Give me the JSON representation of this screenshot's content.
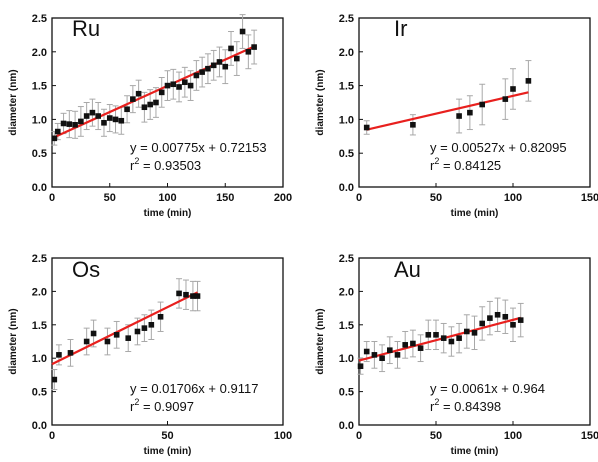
{
  "chart_data": [
    {
      "type": "scatter",
      "title": "Ru",
      "xlabel": "time (min)",
      "ylabel": "diameter (nm)",
      "xlim": [
        0,
        200
      ],
      "ylim": [
        0,
        2.5
      ],
      "xticks": [
        "0",
        "50",
        "100",
        "150",
        "200"
      ],
      "yticks": [
        "0.0",
        "0.5",
        "1.0",
        "1.5",
        "2.0",
        "2.5"
      ],
      "equation": "y = 0.00775x + 0.72153",
      "r2_prefix": "r",
      "r2_exp": "2",
      "r2_value": " = 0.93503",
      "fit": {
        "slope": 0.00775,
        "intercept": 0.72153,
        "x_range": [
          0,
          175
        ],
        "color": "#e8201e"
      },
      "points": [
        {
          "x": 2,
          "y": 0.72,
          "err": 0.1
        },
        {
          "x": 5,
          "y": 0.82,
          "err": 0.12
        },
        {
          "x": 10,
          "y": 0.94,
          "err": 0.15
        },
        {
          "x": 15,
          "y": 0.93,
          "err": 0.2
        },
        {
          "x": 20,
          "y": 0.92,
          "err": 0.2
        },
        {
          "x": 25,
          "y": 0.97,
          "err": 0.22
        },
        {
          "x": 30,
          "y": 1.05,
          "err": 0.2
        },
        {
          "x": 35,
          "y": 1.1,
          "err": 0.2
        },
        {
          "x": 40,
          "y": 1.05,
          "err": 0.2
        },
        {
          "x": 45,
          "y": 0.95,
          "err": 0.2
        },
        {
          "x": 50,
          "y": 1.02,
          "err": 0.2
        },
        {
          "x": 55,
          "y": 1.0,
          "err": 0.2
        },
        {
          "x": 60,
          "y": 0.98,
          "err": 0.2
        },
        {
          "x": 65,
          "y": 1.15,
          "err": 0.2
        },
        {
          "x": 70,
          "y": 1.3,
          "err": 0.2
        },
        {
          "x": 75,
          "y": 1.38,
          "err": 0.2
        },
        {
          "x": 80,
          "y": 1.18,
          "err": 0.22
        },
        {
          "x": 85,
          "y": 1.22,
          "err": 0.22
        },
        {
          "x": 90,
          "y": 1.25,
          "err": 0.22
        },
        {
          "x": 95,
          "y": 1.4,
          "err": 0.22
        },
        {
          "x": 100,
          "y": 1.5,
          "err": 0.22
        },
        {
          "x": 105,
          "y": 1.52,
          "err": 0.22
        },
        {
          "x": 110,
          "y": 1.48,
          "err": 0.22
        },
        {
          "x": 115,
          "y": 1.55,
          "err": 0.22
        },
        {
          "x": 120,
          "y": 1.5,
          "err": 0.22
        },
        {
          "x": 125,
          "y": 1.65,
          "err": 0.22
        },
        {
          "x": 130,
          "y": 1.7,
          "err": 0.22
        },
        {
          "x": 135,
          "y": 1.75,
          "err": 0.22
        },
        {
          "x": 140,
          "y": 1.8,
          "err": 0.22
        },
        {
          "x": 145,
          "y": 1.85,
          "err": 0.22
        },
        {
          "x": 150,
          "y": 1.78,
          "err": 0.25
        },
        {
          "x": 155,
          "y": 2.05,
          "err": 0.25
        },
        {
          "x": 160,
          "y": 1.9,
          "err": 0.25
        },
        {
          "x": 165,
          "y": 2.3,
          "err": 0.25
        },
        {
          "x": 170,
          "y": 2.0,
          "err": 0.25
        },
        {
          "x": 175,
          "y": 2.07,
          "err": 0.25
        }
      ]
    },
    {
      "type": "scatter",
      "title": "Ir",
      "xlabel": "time (min)",
      "ylabel": "diameter (nm)",
      "xlim": [
        0,
        150
      ],
      "ylim": [
        0,
        2.5
      ],
      "xticks": [
        "0",
        "50",
        "100",
        "150"
      ],
      "yticks": [
        "0.0",
        "0.5",
        "1.0",
        "1.5",
        "2.0",
        "2.5"
      ],
      "equation": "y = 0.00527x + 0.82095",
      "r2_prefix": "r",
      "r2_exp": "2",
      "r2_value": " = 0.84125",
      "fit": {
        "slope": 0.00527,
        "intercept": 0.82095,
        "x_range": [
          5,
          110
        ],
        "color": "#e8201e"
      },
      "points": [
        {
          "x": 5,
          "y": 0.88,
          "err": 0.1
        },
        {
          "x": 35,
          "y": 0.92,
          "err": 0.15
        },
        {
          "x": 65,
          "y": 1.05,
          "err": 0.25
        },
        {
          "x": 72,
          "y": 1.1,
          "err": 0.25
        },
        {
          "x": 80,
          "y": 1.22,
          "err": 0.3
        },
        {
          "x": 95,
          "y": 1.3,
          "err": 0.3
        },
        {
          "x": 100,
          "y": 1.45,
          "err": 0.3
        },
        {
          "x": 110,
          "y": 1.57,
          "err": 0.3
        }
      ]
    },
    {
      "type": "scatter",
      "title": "Os",
      "xlabel": "time (min)",
      "ylabel": "diameter (nm)",
      "xlim": [
        0,
        100
      ],
      "ylim": [
        0,
        2.5
      ],
      "xticks": [
        "0",
        "50",
        "100"
      ],
      "yticks": [
        "0.0",
        "0.5",
        "1.0",
        "1.5",
        "2.0",
        "2.5"
      ],
      "equation": "y = 0.01706x + 0.9117",
      "r2_prefix": "r",
      "r2_exp": "2",
      "r2_value": " = 0.9097",
      "fit": {
        "slope": 0.01706,
        "intercept": 0.9117,
        "x_range": [
          0,
          63
        ],
        "color": "#e8201e"
      },
      "points": [
        {
          "x": 1,
          "y": 0.68,
          "err": 0.15
        },
        {
          "x": 3,
          "y": 1.05,
          "err": 0.15
        },
        {
          "x": 8,
          "y": 1.08,
          "err": 0.2
        },
        {
          "x": 15,
          "y": 1.25,
          "err": 0.2
        },
        {
          "x": 18,
          "y": 1.37,
          "err": 0.2
        },
        {
          "x": 24,
          "y": 1.25,
          "err": 0.2
        },
        {
          "x": 28,
          "y": 1.35,
          "err": 0.2
        },
        {
          "x": 33,
          "y": 1.3,
          "err": 0.2
        },
        {
          "x": 37,
          "y": 1.4,
          "err": 0.2
        },
        {
          "x": 40,
          "y": 1.45,
          "err": 0.2
        },
        {
          "x": 43,
          "y": 1.5,
          "err": 0.22
        },
        {
          "x": 47,
          "y": 1.62,
          "err": 0.22
        },
        {
          "x": 55,
          "y": 1.97,
          "err": 0.22
        },
        {
          "x": 58,
          "y": 1.95,
          "err": 0.22
        },
        {
          "x": 61,
          "y": 1.93,
          "err": 0.22
        },
        {
          "x": 63,
          "y": 1.93,
          "err": 0.22
        }
      ]
    },
    {
      "type": "scatter",
      "title": "Au",
      "xlabel": "time (min)",
      "ylabel": "diameter (nm)",
      "xlim": [
        0,
        150
      ],
      "ylim": [
        0,
        2.5
      ],
      "xticks": [
        "0",
        "50",
        "100",
        "150"
      ],
      "yticks": [
        "0.0",
        "0.5",
        "1.0",
        "1.5",
        "2.0",
        "2.5"
      ],
      "equation": "y = 0.0061x + 0.964",
      "r2_prefix": "r",
      "r2_exp": "2",
      "r2_value": " = 0.84398",
      "fit": {
        "slope": 0.0061,
        "intercept": 0.964,
        "x_range": [
          0,
          105
        ],
        "color": "#e8201e"
      },
      "points": [
        {
          "x": 1,
          "y": 0.88,
          "err": 0.12
        },
        {
          "x": 5,
          "y": 1.1,
          "err": 0.15
        },
        {
          "x": 10,
          "y": 1.05,
          "err": 0.2
        },
        {
          "x": 15,
          "y": 1.0,
          "err": 0.2
        },
        {
          "x": 20,
          "y": 1.12,
          "err": 0.2
        },
        {
          "x": 25,
          "y": 1.05,
          "err": 0.2
        },
        {
          "x": 30,
          "y": 1.2,
          "err": 0.2
        },
        {
          "x": 35,
          "y": 1.22,
          "err": 0.2
        },
        {
          "x": 40,
          "y": 1.15,
          "err": 0.2
        },
        {
          "x": 45,
          "y": 1.35,
          "err": 0.22
        },
        {
          "x": 50,
          "y": 1.35,
          "err": 0.22
        },
        {
          "x": 55,
          "y": 1.3,
          "err": 0.22
        },
        {
          "x": 60,
          "y": 1.25,
          "err": 0.22
        },
        {
          "x": 65,
          "y": 1.3,
          "err": 0.22
        },
        {
          "x": 70,
          "y": 1.4,
          "err": 0.25
        },
        {
          "x": 75,
          "y": 1.38,
          "err": 0.25
        },
        {
          "x": 80,
          "y": 1.52,
          "err": 0.25
        },
        {
          "x": 85,
          "y": 1.6,
          "err": 0.25
        },
        {
          "x": 90,
          "y": 1.65,
          "err": 0.25
        },
        {
          "x": 95,
          "y": 1.62,
          "err": 0.25
        },
        {
          "x": 100,
          "y": 1.5,
          "err": 0.25
        },
        {
          "x": 105,
          "y": 1.57,
          "err": 0.25
        }
      ]
    }
  ]
}
